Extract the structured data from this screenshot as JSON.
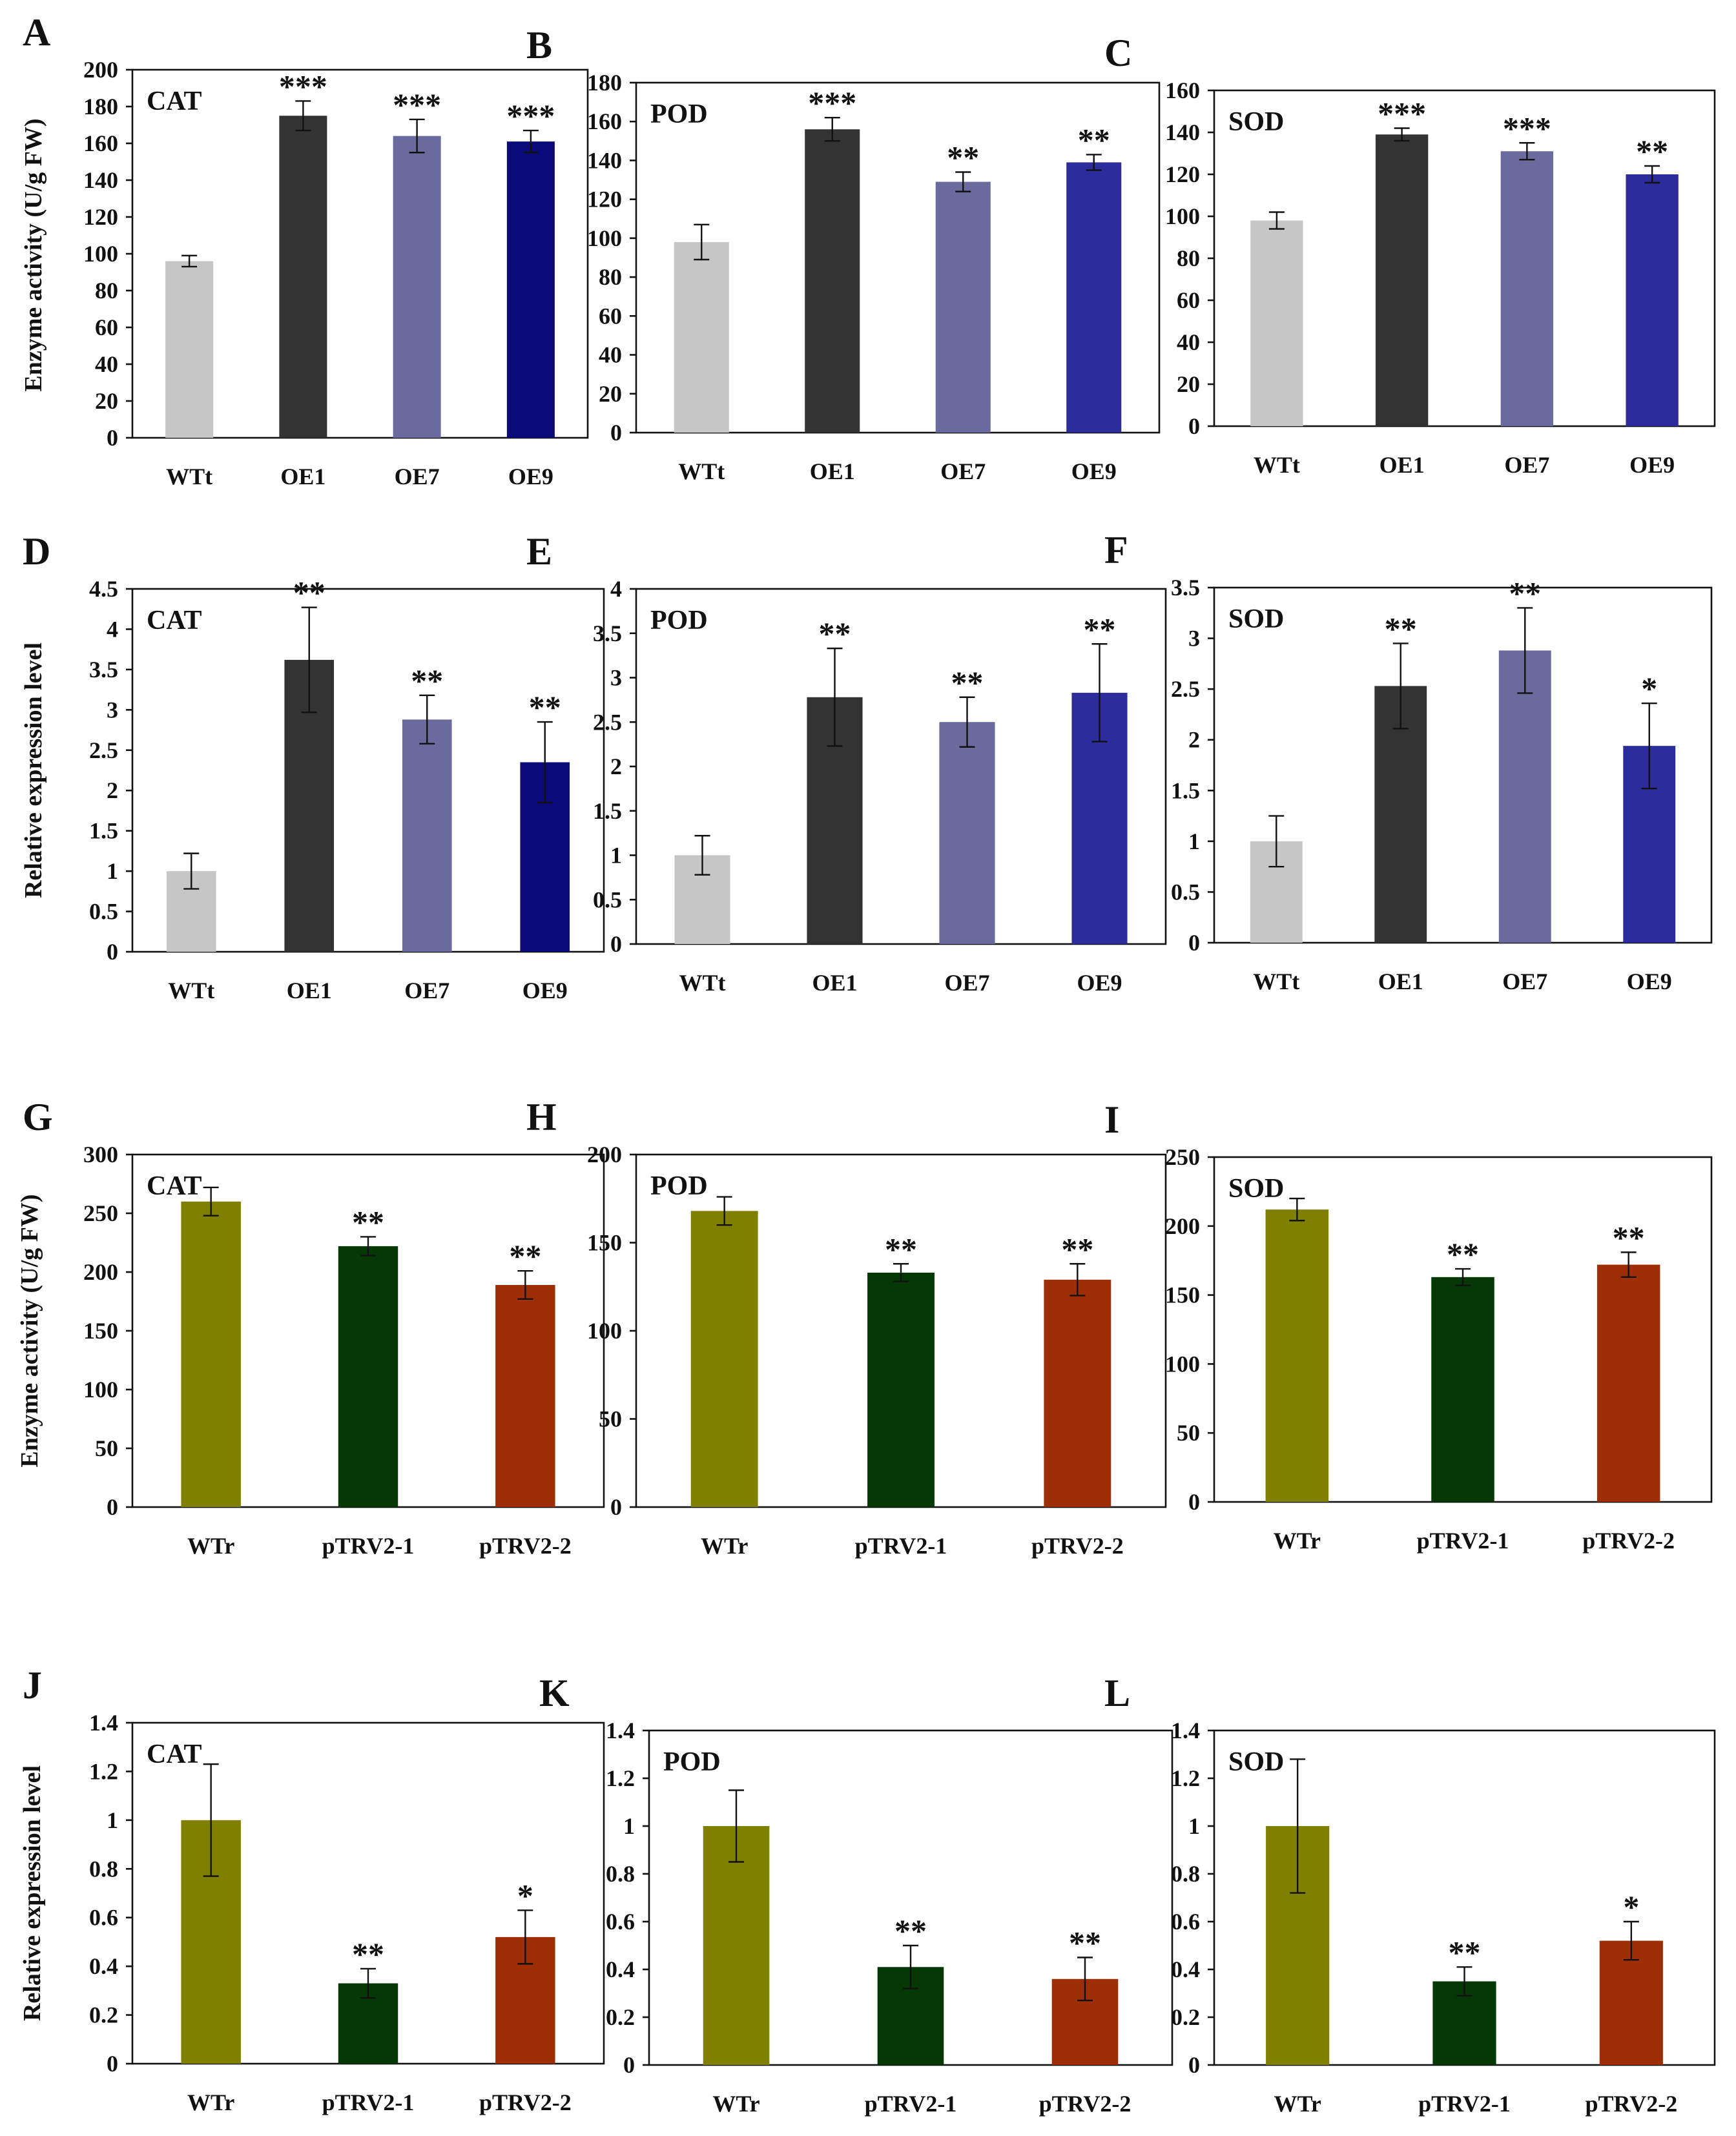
{
  "figure": {
    "y_titles": [
      {
        "text": "Enzyme activity (U/g FW)",
        "row": 0
      },
      {
        "text": "Relative expression level",
        "row": 1
      },
      {
        "text": "Enzyme activity (U/g FW)",
        "row": 2
      },
      {
        "text": "Relative expression level",
        "row": 3
      }
    ]
  },
  "colors": {
    "WTt": "#c6c6c6",
    "OE1": "#333333",
    "OE7": "#6a6a9e",
    "OE9_dark": "#0a0a7a",
    "OE9": "#2c2c9c",
    "WTr": "#808000",
    "pTRV2-1": "#063806",
    "pTRV2-2": "#9e2e06"
  },
  "chart_data": [
    {
      "panel": "A",
      "type": "bar",
      "title": "CAT",
      "categories": [
        "WTt",
        "OE1",
        "OE7",
        "OE9"
      ],
      "values": [
        96,
        175,
        164,
        161
      ],
      "errors": [
        3,
        8,
        9,
        6
      ],
      "significance": [
        "",
        "***",
        "***",
        "***"
      ],
      "ylim": [
        0,
        200
      ],
      "yticks": [
        "0",
        "20",
        "40",
        "60",
        "80",
        "100",
        "120",
        "140",
        "160",
        "180",
        "200"
      ],
      "ylabel": "Enzyme activity (U/g FW)",
      "colors": [
        "#c6c6c6",
        "#333333",
        "#6a6a9e",
        "#0a0a7a"
      ]
    },
    {
      "panel": "B",
      "type": "bar",
      "title": "POD",
      "categories": [
        "WTt",
        "OE1",
        "OE7",
        "OE9"
      ],
      "values": [
        98,
        156,
        129,
        139
      ],
      "errors": [
        9,
        6,
        5,
        4
      ],
      "significance": [
        "",
        "***",
        "**",
        "**"
      ],
      "ylim": [
        0,
        180
      ],
      "yticks": [
        "0",
        "20",
        "40",
        "60",
        "80",
        "100",
        "120",
        "140",
        "160",
        "180"
      ],
      "ylabel": "",
      "colors": [
        "#c6c6c6",
        "#333333",
        "#6a6a9e",
        "#2c2c9c"
      ]
    },
    {
      "panel": "C",
      "type": "bar",
      "title": "SOD",
      "categories": [
        "WTt",
        "OE1",
        "OE7",
        "OE9"
      ],
      "values": [
        98,
        139,
        131,
        120
      ],
      "errors": [
        4,
        3,
        4,
        4
      ],
      "significance": [
        "",
        "***",
        "***",
        "**"
      ],
      "ylim": [
        0,
        160
      ],
      "yticks": [
        "0",
        "20",
        "40",
        "60",
        "80",
        "100",
        "120",
        "140",
        "160"
      ],
      "ylabel": "",
      "colors": [
        "#c6c6c6",
        "#333333",
        "#6a6a9e",
        "#2c2c9c"
      ]
    },
    {
      "panel": "D",
      "type": "bar",
      "title": "CAT",
      "categories": [
        "WTt",
        "OE1",
        "OE7",
        "OE9"
      ],
      "values": [
        1.0,
        3.62,
        2.88,
        2.35
      ],
      "errors": [
        0.22,
        0.65,
        0.3,
        0.5
      ],
      "significance": [
        "",
        "**",
        "**",
        "**"
      ],
      "ylim": [
        0,
        4.5
      ],
      "yticks": [
        "0",
        "0.5",
        "1",
        "1.5",
        "2",
        "2.5",
        "3",
        "3.5",
        "4",
        "4.5"
      ],
      "ylabel": "Relative expression level",
      "colors": [
        "#c6c6c6",
        "#333333",
        "#6a6a9e",
        "#0a0a7a"
      ]
    },
    {
      "panel": "E",
      "type": "bar",
      "title": "POD",
      "categories": [
        "WTt",
        "OE1",
        "OE7",
        "OE9"
      ],
      "values": [
        1.0,
        2.78,
        2.5,
        2.83
      ],
      "errors": [
        0.22,
        0.55,
        0.28,
        0.55
      ],
      "significance": [
        "",
        "**",
        "**",
        "**"
      ],
      "ylim": [
        0,
        4
      ],
      "yticks": [
        "0",
        "0.5",
        "1",
        "1.5",
        "2",
        "2.5",
        "3",
        "3.5",
        "4"
      ],
      "ylabel": "",
      "colors": [
        "#c6c6c6",
        "#333333",
        "#6a6a9e",
        "#2c2c9c"
      ]
    },
    {
      "panel": "F",
      "type": "bar",
      "title": "SOD",
      "categories": [
        "WTt",
        "OE1",
        "OE7",
        "OE9"
      ],
      "values": [
        1.0,
        2.53,
        2.88,
        1.94
      ],
      "errors": [
        0.25,
        0.42,
        0.42,
        0.42
      ],
      "significance": [
        "",
        "**",
        "**",
        "*"
      ],
      "ylim": [
        0,
        3.5
      ],
      "yticks": [
        "0",
        "0.5",
        "1",
        "1.5",
        "2",
        "2.5",
        "3",
        "3.5"
      ],
      "ylabel": "",
      "colors": [
        "#c6c6c6",
        "#333333",
        "#6a6a9e",
        "#2c2c9c"
      ]
    },
    {
      "panel": "G",
      "type": "bar",
      "title": "CAT",
      "categories": [
        "WTr",
        "pTRV2-1",
        "pTRV2-2"
      ],
      "values": [
        260,
        222,
        189
      ],
      "errors": [
        12,
        8,
        12
      ],
      "significance": [
        "",
        "**",
        "**"
      ],
      "ylim": [
        0,
        300
      ],
      "yticks": [
        "0",
        "50",
        "100",
        "150",
        "200",
        "250",
        "300"
      ],
      "ylabel": "Enzyme activity (U/g FW)",
      "colors": [
        "#808000",
        "#063806",
        "#9e2e06"
      ]
    },
    {
      "panel": "H",
      "type": "bar",
      "title": "POD",
      "categories": [
        "WTr",
        "pTRV2-1",
        "pTRV2-2"
      ],
      "values": [
        168,
        133,
        129
      ],
      "errors": [
        8,
        5,
        9
      ],
      "significance": [
        "",
        "**",
        "**"
      ],
      "ylim": [
        0,
        200
      ],
      "yticks": [
        "0",
        "50",
        "100",
        "150",
        "200"
      ],
      "ylabel": "",
      "colors": [
        "#808000",
        "#063806",
        "#9e2e06"
      ]
    },
    {
      "panel": "I",
      "type": "bar",
      "title": "SOD",
      "categories": [
        "WTr",
        "pTRV2-1",
        "pTRV2-2"
      ],
      "values": [
        212,
        163,
        172
      ],
      "errors": [
        8,
        6,
        9
      ],
      "significance": [
        "",
        "**",
        "**"
      ],
      "ylim": [
        0,
        250
      ],
      "yticks": [
        "0",
        "50",
        "100",
        "150",
        "200",
        "250"
      ],
      "ylabel": "",
      "colors": [
        "#808000",
        "#063806",
        "#9e2e06"
      ]
    },
    {
      "panel": "J",
      "type": "bar",
      "title": "CAT",
      "categories": [
        "WTr",
        "pTRV2-1",
        "pTRV2-2"
      ],
      "values": [
        1.0,
        0.33,
        0.52
      ],
      "errors": [
        0.23,
        0.06,
        0.11
      ],
      "significance": [
        "",
        "**",
        "*"
      ],
      "ylim": [
        0,
        1.4
      ],
      "yticks": [
        "0",
        "0.2",
        "0.4",
        "0.6",
        "0.8",
        "1",
        "1.2",
        "1.4"
      ],
      "ylabel": "Relative expression level",
      "colors": [
        "#808000",
        "#063806",
        "#9e2e06"
      ]
    },
    {
      "panel": "K",
      "type": "bar",
      "title": "POD",
      "categories": [
        "WTr",
        "pTRV2-1",
        "pTRV2-2"
      ],
      "values": [
        1.0,
        0.41,
        0.36
      ],
      "errors": [
        0.15,
        0.09,
        0.09
      ],
      "significance": [
        "",
        "**",
        "**"
      ],
      "ylim": [
        0,
        1.4
      ],
      "yticks": [
        "0",
        "0.2",
        "0.4",
        "0.6",
        "0.8",
        "1",
        "1.2",
        "1.4"
      ],
      "ylabel": "",
      "colors": [
        "#808000",
        "#063806",
        "#9e2e06"
      ]
    },
    {
      "panel": "L",
      "type": "bar",
      "title": "SOD",
      "categories": [
        "WTr",
        "pTRV2-1",
        "pTRV2-2"
      ],
      "values": [
        1.0,
        0.35,
        0.52
      ],
      "errors": [
        0.28,
        0.06,
        0.08
      ],
      "significance": [
        "",
        "**",
        "*"
      ],
      "ylim": [
        0,
        1.4
      ],
      "yticks": [
        "0",
        "0.2",
        "0.4",
        "0.6",
        "0.8",
        "1",
        "1.2",
        "1.4"
      ],
      "ylabel": "",
      "colors": [
        "#808000",
        "#063806",
        "#9e2e06"
      ]
    }
  ]
}
